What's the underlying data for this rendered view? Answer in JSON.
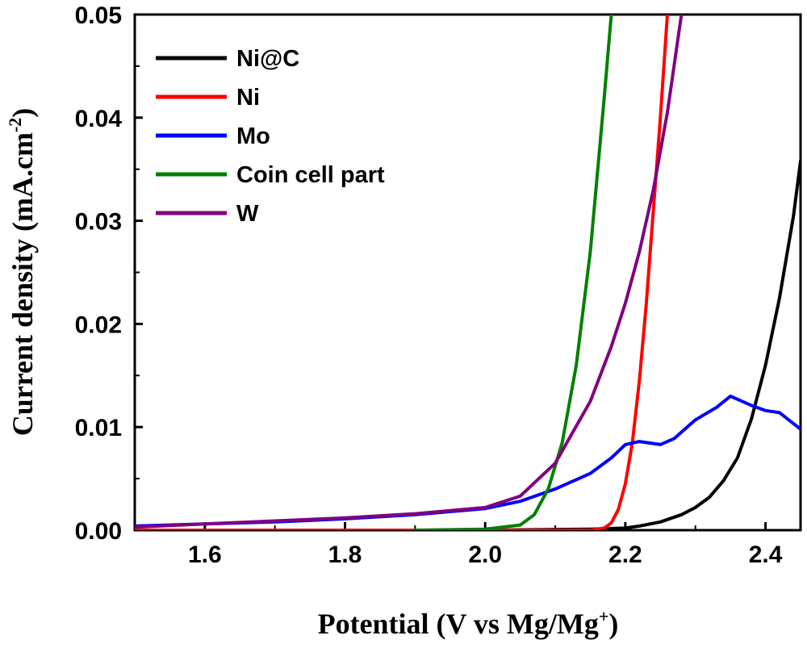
{
  "chart_data": {
    "type": "line",
    "xlabel": "Potential (V vs Mg/Mg",
    "xlabel_sup": "+",
    "xlabel_close": ")",
    "ylabel": "Current density (mA.cm",
    "ylabel_sup": "-2",
    "ylabel_close": ")",
    "xlim": [
      1.5,
      2.45
    ],
    "ylim": [
      0.0,
      0.05
    ],
    "x_ticks": [
      1.6,
      1.8,
      2.0,
      2.2,
      2.4
    ],
    "x_tick_labels": [
      "1.6",
      "1.8",
      "2.0",
      "2.2",
      "2.4"
    ],
    "y_ticks": [
      0.0,
      0.01,
      0.02,
      0.03,
      0.04,
      0.05
    ],
    "y_tick_labels": [
      "0.00",
      "0.01",
      "0.02",
      "0.03",
      "0.04",
      "0.05"
    ],
    "grid": false,
    "legend_position": "top-left",
    "series": [
      {
        "name": "Ni@C",
        "color": "#000000",
        "x": [
          1.5,
          1.8,
          2.0,
          2.15,
          2.2,
          2.22,
          2.25,
          2.28,
          2.3,
          2.32,
          2.34,
          2.36,
          2.38,
          2.4,
          2.42,
          2.44,
          2.45
        ],
        "y": [
          0.0,
          0.0,
          0.0,
          0.0001,
          0.0002,
          0.0004,
          0.0008,
          0.0015,
          0.0022,
          0.0032,
          0.0048,
          0.007,
          0.0108,
          0.016,
          0.0225,
          0.0305,
          0.0358
        ]
      },
      {
        "name": "Ni",
        "color": "#ff0000",
        "x": [
          1.5,
          1.8,
          2.0,
          2.15,
          2.17,
          2.18,
          2.19,
          2.2,
          2.21,
          2.22,
          2.23,
          2.24,
          2.25,
          2.26
        ],
        "y": [
          0.0,
          0.0,
          0.0,
          0.0,
          0.0002,
          0.0007,
          0.002,
          0.0045,
          0.0085,
          0.0145,
          0.022,
          0.031,
          0.04,
          0.05
        ]
      },
      {
        "name": "Mo",
        "color": "#0000ff",
        "x": [
          1.5,
          1.6,
          1.7,
          1.8,
          1.9,
          2.0,
          2.05,
          2.1,
          2.15,
          2.18,
          2.2,
          2.22,
          2.25,
          2.27,
          2.3,
          2.33,
          2.35,
          2.38,
          2.4,
          2.42,
          2.45
        ],
        "y": [
          0.0004,
          0.0006,
          0.0008,
          0.0011,
          0.0015,
          0.0021,
          0.0028,
          0.004,
          0.0055,
          0.007,
          0.0083,
          0.0086,
          0.0083,
          0.0089,
          0.0107,
          0.0119,
          0.013,
          0.0121,
          0.0116,
          0.0114,
          0.0098
        ]
      },
      {
        "name": "Coin cell part",
        "color": "#008000",
        "x": [
          1.9,
          2.0,
          2.05,
          2.07,
          2.09,
          2.11,
          2.13,
          2.15,
          2.17,
          2.18
        ],
        "y": [
          0.0,
          0.0001,
          0.0005,
          0.0015,
          0.004,
          0.0085,
          0.016,
          0.027,
          0.042,
          0.05
        ]
      },
      {
        "name": "W",
        "color": "#800080",
        "x": [
          1.5,
          1.6,
          1.7,
          1.8,
          1.9,
          2.0,
          2.05,
          2.1,
          2.15,
          2.18,
          2.2,
          2.22,
          2.24,
          2.26,
          2.28
        ],
        "y": [
          0.0003,
          0.0006,
          0.0009,
          0.0012,
          0.0016,
          0.0022,
          0.0033,
          0.0065,
          0.0125,
          0.0178,
          0.022,
          0.027,
          0.033,
          0.0405,
          0.05
        ]
      }
    ]
  }
}
